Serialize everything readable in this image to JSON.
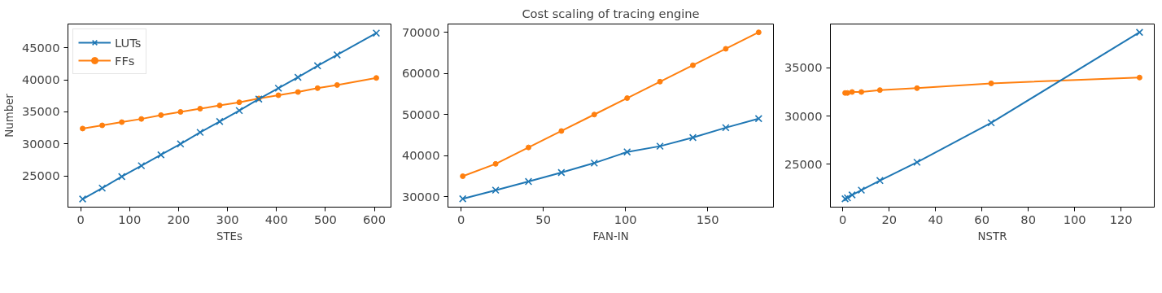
{
  "chart_data": [
    {
      "type": "line",
      "xlabel": "STEs",
      "ylabel": "Number",
      "legend": "top left",
      "grid": false,
      "xlim": [
        -26,
        634
      ],
      "ylim": [
        20130,
        48720
      ],
      "xticks": [
        0,
        100,
        200,
        300,
        400,
        500,
        600
      ],
      "yticks": [
        25000,
        30000,
        35000,
        40000,
        45000
      ],
      "x": [
        4,
        44,
        84,
        124,
        164,
        204,
        244,
        284,
        324,
        364,
        404,
        444,
        484,
        524,
        604
      ],
      "series": [
        {
          "name": "LUTs",
          "color": "#1f77b4",
          "marker": "cross",
          "values": [
            21400,
            23100,
            24900,
            26600,
            28300,
            30000,
            31800,
            33500,
            35200,
            37000,
            38700,
            40400,
            42200,
            43900,
            47300
          ]
        },
        {
          "name": "FFs",
          "color": "#ff7f0e",
          "marker": "circle",
          "values": [
            32400,
            32900,
            33400,
            33900,
            34500,
            35000,
            35500,
            36000,
            36500,
            37100,
            37600,
            38100,
            38700,
            39200,
            40300
          ]
        }
      ]
    },
    {
      "type": "line",
      "title": "Cost scaling of tracing engine",
      "xlabel": "FAN-IN",
      "grid": false,
      "xlim": [
        -8,
        190
      ],
      "ylim": [
        27475,
        72025
      ],
      "xticks": [
        0,
        50,
        100,
        150
      ],
      "yticks": [
        30000,
        40000,
        50000,
        60000,
        70000
      ],
      "x": [
        1,
        21,
        41,
        61,
        81,
        101,
        121,
        141,
        161,
        181
      ],
      "series": [
        {
          "color": "#1f77b4",
          "marker": "cross",
          "values": [
            29500,
            31600,
            33700,
            35900,
            38200,
            40900,
            42300,
            44400,
            46800,
            49000
          ]
        },
        {
          "color": "#ff7f0e",
          "marker": "circle",
          "values": [
            35000,
            38000,
            42000,
            46000,
            50000,
            54000,
            58000,
            62000,
            66000,
            70000
          ]
        }
      ]
    },
    {
      "type": "line",
      "xlabel": "NSTR",
      "grid": false,
      "xlim": [
        -5.35,
        134.35
      ],
      "ylim": [
        20535,
        39565
      ],
      "xticks": [
        0,
        20,
        40,
        60,
        80,
        100,
        120
      ],
      "yticks": [
        25000,
        30000,
        35000
      ],
      "x": [
        1,
        2,
        4,
        8,
        16,
        32,
        64,
        128
      ],
      "series": [
        {
          "color": "#1f77b4",
          "marker": "cross",
          "values": [
            21400,
            21500,
            21800,
            22300,
            23300,
            25200,
            29300,
            38700
          ]
        },
        {
          "color": "#ff7f0e",
          "marker": "circle",
          "values": [
            32400,
            32400,
            32500,
            32500,
            32700,
            32900,
            33400,
            34000
          ]
        }
      ]
    }
  ]
}
